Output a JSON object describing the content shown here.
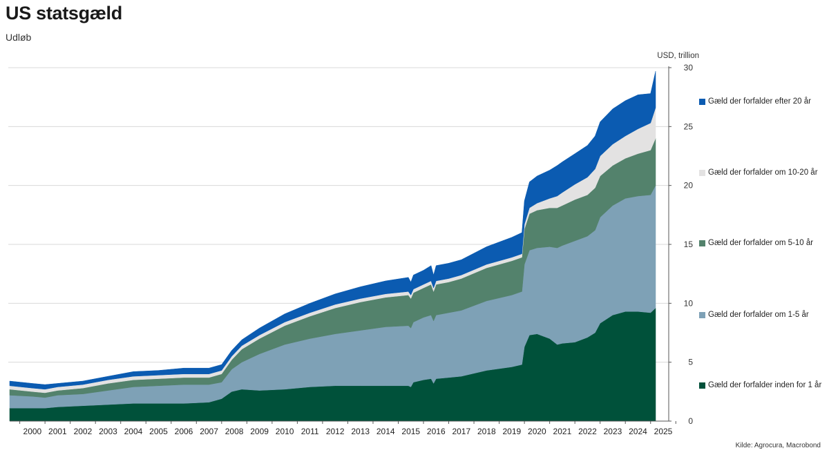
{
  "title": "US statsgæld",
  "subtitle": "Udløb",
  "source": "Kilde: Agrocura, Macrobond",
  "chart_data": {
    "type": "area",
    "stacked": true,
    "title": "US statsgæld",
    "subtitle": "Udløb",
    "ylabel": "USD, trillion",
    "ylim": [
      0,
      30
    ],
    "yticks": [
      0,
      5,
      10,
      15,
      20,
      25,
      30
    ],
    "xlim": [
      1999.6,
      2025.5
    ],
    "xticks": [
      "2000",
      "2001",
      "2002",
      "2003",
      "2004",
      "2005",
      "2006",
      "2007",
      "2008",
      "2009",
      "2010",
      "2011",
      "2012",
      "2013",
      "2014",
      "2015",
      "2016",
      "2017",
      "2018",
      "2019",
      "2020",
      "2021",
      "2022",
      "2023",
      "2024",
      "2025"
    ],
    "grid": true,
    "x": [
      1999.6,
      2000.5,
      2001.0,
      2001.5,
      2002.5,
      2003.5,
      2004.5,
      2005.5,
      2006.5,
      2007.5,
      2008.0,
      2008.4,
      2008.8,
      2009.5,
      2010.5,
      2011.5,
      2012.5,
      2013.5,
      2014.5,
      2015.4,
      2015.5,
      2015.6,
      2016.0,
      2016.3,
      2016.4,
      2016.5,
      2017.0,
      2017.5,
      2018.5,
      2019.5,
      2019.9,
      2020.0,
      2020.2,
      2020.5,
      2021.0,
      2021.3,
      2021.5,
      2022.0,
      2022.5,
      2022.8,
      2023.0,
      2023.5,
      2024.0,
      2024.5,
      2025.0,
      2025.2
    ],
    "series": [
      {
        "name": "Gæld der forfalder inden for 1 år",
        "color": "#00513a",
        "values": [
          1.1,
          1.1,
          1.1,
          1.2,
          1.3,
          1.4,
          1.5,
          1.5,
          1.5,
          1.6,
          1.9,
          2.5,
          2.7,
          2.6,
          2.7,
          2.9,
          3.0,
          3.0,
          3.0,
          3.0,
          2.9,
          3.3,
          3.5,
          3.6,
          3.2,
          3.6,
          3.7,
          3.8,
          4.3,
          4.6,
          4.8,
          6.3,
          7.3,
          7.4,
          7.0,
          6.5,
          6.6,
          6.7,
          7.1,
          7.5,
          8.3,
          9.0,
          9.3,
          9.3,
          9.2,
          9.6
        ]
      },
      {
        "name": "Gæld der forfalder om 1-5 år",
        "color": "#7ea1b6",
        "values": [
          1.1,
          1.0,
          0.9,
          1.0,
          1.0,
          1.2,
          1.4,
          1.5,
          1.6,
          1.5,
          1.4,
          1.9,
          2.3,
          3.1,
          3.8,
          4.1,
          4.4,
          4.7,
          5.0,
          5.1,
          5.0,
          5.1,
          5.3,
          5.4,
          5.3,
          5.4,
          5.5,
          5.6,
          5.9,
          6.1,
          6.2,
          7.0,
          7.2,
          7.3,
          7.8,
          8.2,
          8.3,
          8.6,
          8.6,
          8.7,
          9.0,
          9.3,
          9.6,
          9.8,
          10.0,
          10.4
        ]
      },
      {
        "name": "Gæld der forfalder om 5-10 år",
        "color": "#53826c",
        "values": [
          0.5,
          0.4,
          0.4,
          0.4,
          0.5,
          0.6,
          0.6,
          0.6,
          0.6,
          0.6,
          0.7,
          0.8,
          1.1,
          1.3,
          1.6,
          1.9,
          2.2,
          2.4,
          2.5,
          2.6,
          2.5,
          2.5,
          2.5,
          2.6,
          2.5,
          2.6,
          2.6,
          2.7,
          2.8,
          2.9,
          2.9,
          3.0,
          3.1,
          3.2,
          3.3,
          3.4,
          3.4,
          3.5,
          3.5,
          3.6,
          3.5,
          3.4,
          3.4,
          3.6,
          3.8,
          4.0
        ]
      },
      {
        "name": "Gæld der forfalder om 10-20 år",
        "color": "#e3e2e2",
        "values": [
          0.3,
          0.3,
          0.3,
          0.3,
          0.3,
          0.3,
          0.3,
          0.3,
          0.3,
          0.3,
          0.3,
          0.3,
          0.3,
          0.3,
          0.3,
          0.3,
          0.3,
          0.3,
          0.3,
          0.3,
          0.3,
          0.3,
          0.3,
          0.3,
          0.3,
          0.3,
          0.3,
          0.3,
          0.3,
          0.3,
          0.3,
          0.4,
          0.5,
          0.6,
          0.8,
          1.0,
          1.1,
          1.3,
          1.5,
          1.6,
          1.7,
          1.8,
          1.9,
          2.1,
          2.3,
          2.6
        ]
      },
      {
        "name": "Gæld der forfalder efter 20 år",
        "color": "#0b5bb1",
        "values": [
          0.4,
          0.4,
          0.4,
          0.3,
          0.3,
          0.3,
          0.4,
          0.4,
          0.5,
          0.5,
          0.5,
          0.5,
          0.5,
          0.6,
          0.7,
          0.8,
          0.9,
          1.0,
          1.1,
          1.2,
          1.1,
          1.2,
          1.2,
          1.3,
          1.1,
          1.3,
          1.3,
          1.3,
          1.5,
          1.7,
          1.8,
          2.0,
          2.2,
          2.3,
          2.4,
          2.6,
          2.6,
          2.6,
          2.7,
          2.8,
          2.9,
          3.0,
          3.0,
          2.9,
          2.5,
          3.1
        ]
      }
    ]
  }
}
